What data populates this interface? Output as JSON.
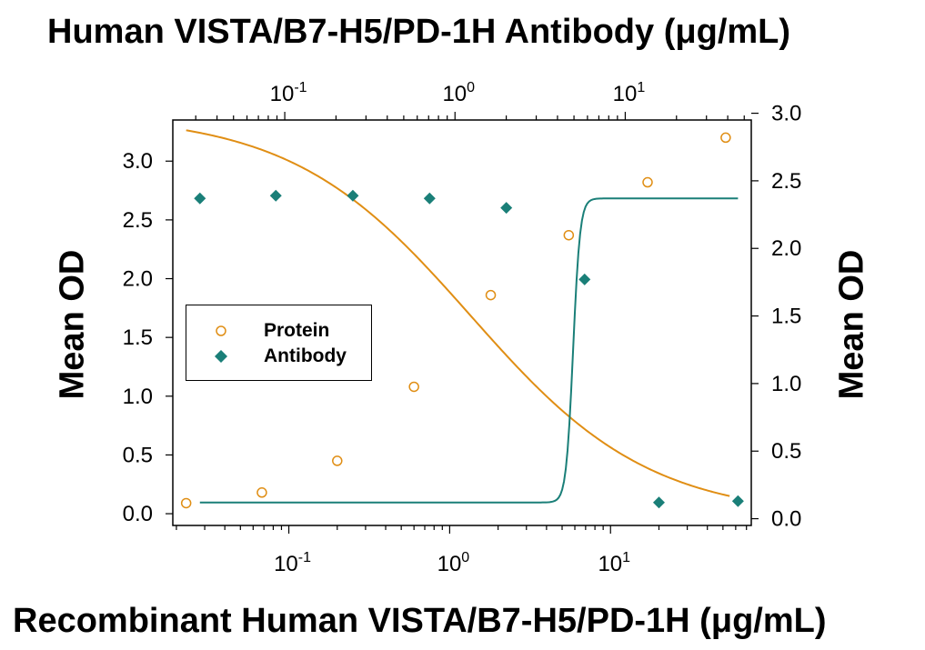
{
  "top_title": "Human VISTA/B7-H5/PD-1H Antibody (μg/mL)",
  "bottom_title": "Recombinant Human VISTA/B7-H5/PD-1H (μg/mL)",
  "left_ylabel": "Mean OD",
  "right_ylabel": "Mean OD",
  "colors": {
    "protein": "#E08E14",
    "antibody": "#1A7F78",
    "axis": "#000000"
  },
  "chart_data": {
    "type": "scatter",
    "x_scale": "log",
    "xlim": [
      0.019,
      75
    ],
    "top_xlim": [
      0.022,
      55
    ],
    "left_ylim": [
      -0.1,
      3.35
    ],
    "right_ylim": [
      -0.05,
      2.95
    ],
    "x_ticks": [
      {
        "base": "10",
        "exp": "-1",
        "value": 0.1
      },
      {
        "base": "10",
        "exp": "0",
        "value": 1
      },
      {
        "base": "10",
        "exp": "1",
        "value": 10
      }
    ],
    "left_y_ticks": [
      "0.0",
      "0.5",
      "1.0",
      "1.5",
      "2.0",
      "2.5",
      "3.0"
    ],
    "right_y_ticks": [
      "0.0",
      "0.5",
      "1.0",
      "1.5",
      "2.0",
      "2.5",
      "3.0"
    ],
    "legend": {
      "position": "left-center",
      "entries": [
        "Protein",
        "Antibody"
      ]
    },
    "series": [
      {
        "name": "Protein",
        "axis": "left",
        "marker": "open-circle",
        "fit": "4PL",
        "x": [
          0.023,
          0.068,
          0.2,
          0.6,
          1.8,
          5.5,
          17,
          52
        ],
        "y": [
          0.09,
          0.18,
          0.45,
          1.08,
          1.86,
          2.37,
          2.82,
          3.2
        ]
      },
      {
        "name": "Antibody",
        "axis": "right",
        "marker": "filled-diamond",
        "fit": "4PL",
        "x": [
          0.028,
          0.083,
          0.25,
          0.75,
          2.25,
          6.9,
          20,
          62
        ],
        "y": [
          2.37,
          2.39,
          2.39,
          2.37,
          2.3,
          1.77,
          0.12,
          0.13
        ]
      }
    ]
  }
}
